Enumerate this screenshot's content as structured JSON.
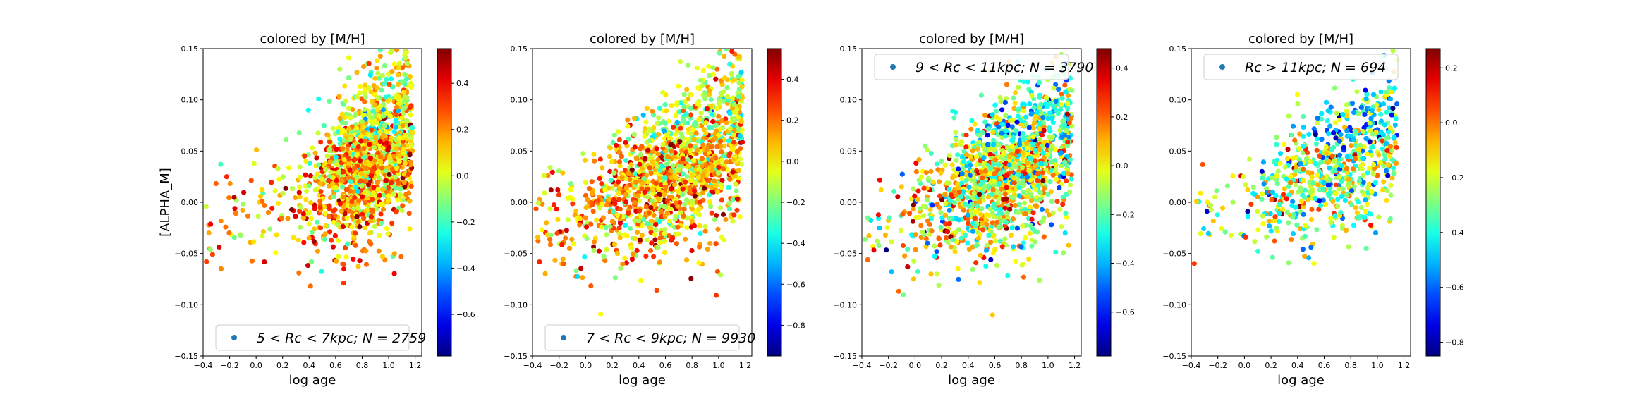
{
  "colormap": "jet",
  "chart_data": [
    {
      "type": "scatter",
      "title": "colored by [M/H]",
      "xlabel": "log age",
      "ylabel": "[ALPHA_M]",
      "xlim": [
        -0.4,
        1.25
      ],
      "ylim": [
        -0.15,
        0.15
      ],
      "xticks": [
        -0.4,
        -0.2,
        0.0,
        0.2,
        0.4,
        0.6,
        0.8,
        1.0,
        1.2
      ],
      "xtick_labels": [
        "−0.4",
        "−0.2",
        "0.0",
        "0.2",
        "0.4",
        "0.6",
        "0.8",
        "1.0",
        "1.2"
      ],
      "yticks": [
        -0.15,
        -0.1,
        -0.05,
        0.0,
        0.05,
        0.1,
        0.15
      ],
      "ytick_labels": [
        "−0.15",
        "−0.10",
        "−0.05",
        "0.00",
        "0.05",
        "0.10",
        "0.15"
      ],
      "legend": {
        "text": "5 < Rc < 7kpc;  N = 2759",
        "placement": "lower-right",
        "marker_color": "#1f77b4"
      },
      "colorbar": {
        "range": [
          -0.78,
          0.55
        ],
        "ticks": [
          0.4,
          0.2,
          0.0,
          -0.2,
          -0.4,
          -0.6
        ],
        "tick_labels": [
          "0.4",
          "0.2",
          "0.0",
          "−0.2",
          "−0.4",
          "−0.6"
        ]
      },
      "n": 2759,
      "trend": {
        "x_center": 0.85,
        "x_spread": 0.22,
        "x_min": -0.38,
        "x_max": 1.18,
        "y_at_young": -0.02,
        "y_at_old": 0.07,
        "y_spread": 0.035,
        "mh_mean": 0.15,
        "mh_spread": 0.18
      }
    },
    {
      "type": "scatter",
      "title": "colored by [M/H]",
      "xlabel": "log age",
      "ylabel": "",
      "xlim": [
        -0.4,
        1.25
      ],
      "ylim": [
        -0.15,
        0.15
      ],
      "xticks": [
        -0.4,
        -0.2,
        0.0,
        0.2,
        0.4,
        0.6,
        0.8,
        1.0,
        1.2
      ],
      "xtick_labels": [
        "−0.4",
        "−0.2",
        "0.0",
        "0.2",
        "0.4",
        "0.6",
        "0.8",
        "1.0",
        "1.2"
      ],
      "yticks": [
        -0.15,
        -0.1,
        -0.05,
        0.0,
        0.05,
        0.1,
        0.15
      ],
      "ytick_labels": [
        "−0.15",
        "−0.10",
        "−0.05",
        "0.00",
        "0.05",
        "0.10",
        "0.15"
      ],
      "legend": {
        "text": "7 < Rc < 9kpc;  N = 9930",
        "placement": "lower-right",
        "marker_color": "#1f77b4"
      },
      "colorbar": {
        "range": [
          -0.95,
          0.55
        ],
        "ticks": [
          0.4,
          0.2,
          0.0,
          -0.2,
          -0.4,
          -0.6,
          -0.8
        ],
        "tick_labels": [
          "0.4",
          "0.2",
          "0.0",
          "−0.2",
          "−0.4",
          "−0.6",
          "−0.8"
        ]
      },
      "n": 9930,
      "trend": {
        "x_center": 0.7,
        "x_spread": 0.35,
        "x_min": -0.38,
        "x_max": 1.18,
        "y_at_young": -0.02,
        "y_at_old": 0.07,
        "y_spread": 0.035,
        "mh_mean": 0.1,
        "mh_spread": 0.2
      }
    },
    {
      "type": "scatter",
      "title": "colored by [M/H]",
      "xlabel": "log age",
      "ylabel": "",
      "xlim": [
        -0.4,
        1.25
      ],
      "ylim": [
        -0.15,
        0.15
      ],
      "xticks": [
        -0.4,
        -0.2,
        0.0,
        0.2,
        0.4,
        0.6,
        0.8,
        1.0,
        1.2
      ],
      "xtick_labels": [
        "−0.4",
        "−0.2",
        "0.0",
        "0.2",
        "0.4",
        "0.6",
        "0.8",
        "1.0",
        "1.2"
      ],
      "yticks": [
        -0.15,
        -0.1,
        -0.05,
        0.0,
        0.05,
        0.1,
        0.15
      ],
      "ytick_labels": [
        "−0.15",
        "−0.10",
        "−0.05",
        "0.00",
        "0.05",
        "0.10",
        "0.15"
      ],
      "legend": {
        "text": "9 < Rc < 11kpc;  N = 3790",
        "placement": "top-right",
        "marker_color": "#1f77b4"
      },
      "colorbar": {
        "range": [
          -0.78,
          0.48
        ],
        "ticks": [
          0.4,
          0.2,
          0.0,
          -0.2,
          -0.4,
          -0.6
        ],
        "tick_labels": [
          "0.4",
          "0.2",
          "0.0",
          "−0.2",
          "−0.4",
          "−0.6"
        ]
      },
      "n": 3790,
      "trend": {
        "x_center": 0.7,
        "x_spread": 0.3,
        "x_min": -0.38,
        "x_max": 1.18,
        "y_at_young": -0.02,
        "y_at_old": 0.07,
        "y_spread": 0.035,
        "mh_mean": -0.05,
        "mh_spread": 0.22
      }
    },
    {
      "type": "scatter",
      "title": "colored by [M/H]",
      "xlabel": "log age",
      "ylabel": "",
      "xlim": [
        -0.4,
        1.25
      ],
      "ylim": [
        -0.15,
        0.15
      ],
      "xticks": [
        -0.4,
        -0.2,
        0.0,
        0.2,
        0.4,
        0.6,
        0.8,
        1.0,
        1.2
      ],
      "xtick_labels": [
        "−0.4",
        "−0.2",
        "0.0",
        "0.2",
        "0.4",
        "0.6",
        "0.8",
        "1.0",
        "1.2"
      ],
      "yticks": [
        -0.15,
        -0.1,
        -0.05,
        0.0,
        0.05,
        0.1,
        0.15
      ],
      "ytick_labels": [
        "−0.15",
        "−0.10",
        "−0.05",
        "0.00",
        "0.05",
        "0.10",
        "0.15"
      ],
      "legend": {
        "text": "Rc > 11kpc;  N = 694",
        "placement": "top-right",
        "marker_color": "#1f77b4"
      },
      "colorbar": {
        "range": [
          -0.85,
          0.27
        ],
        "ticks": [
          0.2,
          0.0,
          -0.2,
          -0.4,
          -0.6,
          -0.8
        ],
        "tick_labels": [
          "0.2",
          "0.0",
          "−0.2",
          "−0.4",
          "−0.6",
          "−0.8"
        ]
      },
      "n": 694,
      "trend": {
        "x_center": 0.7,
        "x_spread": 0.3,
        "x_min": -0.38,
        "x_max": 1.15,
        "y_at_young": -0.01,
        "y_at_old": 0.07,
        "y_spread": 0.03,
        "mh_mean": -0.25,
        "mh_spread": 0.2
      }
    }
  ]
}
